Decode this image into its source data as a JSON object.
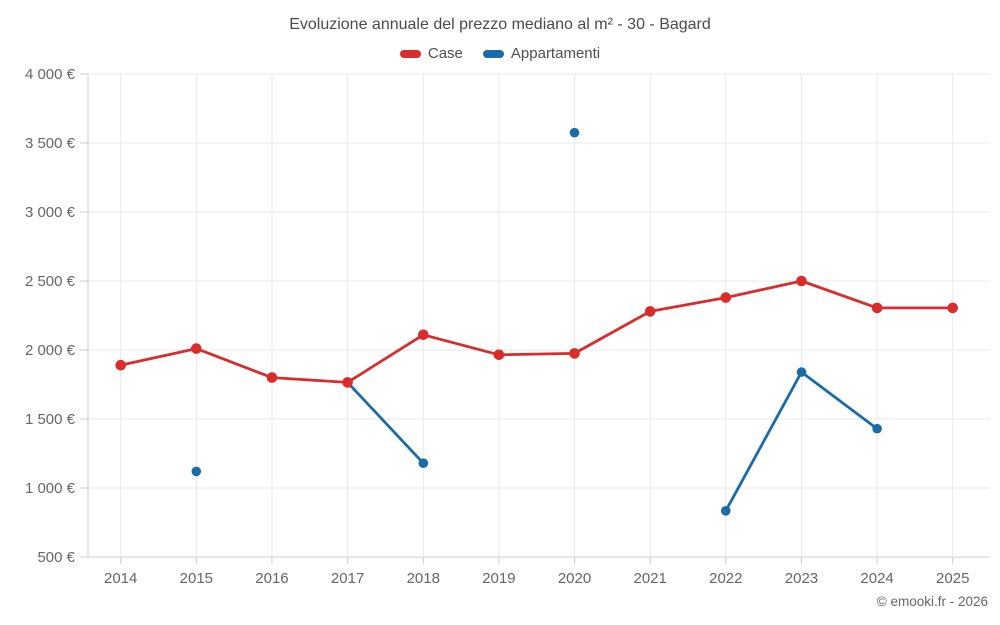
{
  "page": {
    "attribution": "© emooki.fr - 2026"
  },
  "chart_data": {
    "type": "line",
    "title": "Evoluzione annuale del prezzo mediano al m² - 30 - Bagard",
    "xlabel": "",
    "ylabel": "",
    "categories": [
      "2014",
      "2015",
      "2016",
      "2017",
      "2018",
      "2019",
      "2020",
      "2021",
      "2022",
      "2023",
      "2024",
      "2025"
    ],
    "series": [
      {
        "name": "Case",
        "color": "#d92c2c",
        "values": [
          1890,
          2010,
          1800,
          1765,
          2110,
          1965,
          1975,
          2280,
          2380,
          2500,
          2305,
          2305
        ]
      },
      {
        "name": "Appartamenti",
        "color": "#1a6ca8",
        "values": [
          null,
          1120,
          null,
          1765,
          1180,
          null,
          3575,
          null,
          835,
          1840,
          1430,
          null
        ]
      }
    ],
    "y_axis": {
      "min": 500,
      "max": 4000,
      "step": 500,
      "unit": "€",
      "tick_values": [
        500,
        1000,
        1500,
        2000,
        2500,
        3000,
        3500,
        4000
      ],
      "tick_labels": [
        "500 €",
        "1 000 €",
        "1 500 €",
        "2 000 €",
        "2 500 €",
        "3 000 €",
        "3 500 €",
        "4 000 €"
      ]
    },
    "ylim": [
      500,
      4000
    ],
    "grid": true,
    "legend_position": "top"
  },
  "style": {
    "grid_color": "#e9e9e9",
    "axis_color": "#cccccc",
    "tick_text_color": "#666666",
    "title_color": "#4b4b4b"
  }
}
